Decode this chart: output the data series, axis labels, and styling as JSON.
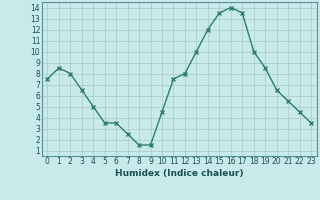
{
  "x": [
    0,
    1,
    2,
    3,
    4,
    5,
    6,
    7,
    8,
    9,
    10,
    11,
    12,
    13,
    14,
    15,
    16,
    17,
    18,
    19,
    20,
    21,
    22,
    23
  ],
  "y": [
    7.5,
    8.5,
    8.0,
    6.5,
    5.0,
    3.5,
    3.5,
    2.5,
    1.5,
    1.5,
    4.5,
    7.5,
    8.0,
    10.0,
    12.0,
    13.5,
    14.0,
    13.5,
    10.0,
    8.5,
    6.5,
    5.5,
    4.5,
    3.5
  ],
  "xlabel": "Humidex (Indice chaleur)",
  "xlim": [
    -0.5,
    23.5
  ],
  "ylim": [
    0.5,
    14.5
  ],
  "xticks": [
    0,
    1,
    2,
    3,
    4,
    5,
    6,
    7,
    8,
    9,
    10,
    11,
    12,
    13,
    14,
    15,
    16,
    17,
    18,
    19,
    20,
    21,
    22,
    23
  ],
  "yticks": [
    1,
    2,
    3,
    4,
    5,
    6,
    7,
    8,
    9,
    10,
    11,
    12,
    13,
    14
  ],
  "line_color": "#2e7d6e",
  "marker_color": "#2e7d6e",
  "bg_color": "#c8eaea",
  "grid_color": "#aecece",
  "spine_color": "#5a9090",
  "font_color": "#1a5050",
  "xlabel_fontsize": 6.5,
  "tick_fontsize": 5.5
}
